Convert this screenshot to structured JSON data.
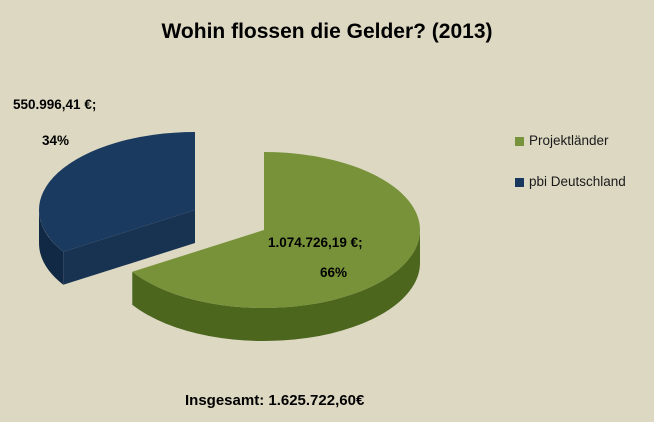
{
  "chart_data": {
    "type": "pie",
    "style": "3d-exploded",
    "title": "Wohin flossen die Gelder? (2013)",
    "legend_position": "right",
    "background_color": "#DCD8C2",
    "total_value": 1625722.6,
    "total_label": "Insgesamt: 1.625.722,60€",
    "slices": [
      {
        "label": "Projektländer",
        "value": 1074726.19,
        "percent": 66,
        "value_label": "1.074.726,19 €;",
        "pct_label": "66%",
        "color": "#78923A",
        "side_color": "#4D661E",
        "legend_color": "#77933C"
      },
      {
        "label": "pbi Deutschland",
        "value": 550996.41,
        "percent": 34,
        "value_label": "550.996,41 €;",
        "pct_label": "34%",
        "color": "#1B3A60",
        "side_color": "#112944",
        "cut_color": "#183252",
        "legend_color": "#17375E"
      }
    ]
  }
}
